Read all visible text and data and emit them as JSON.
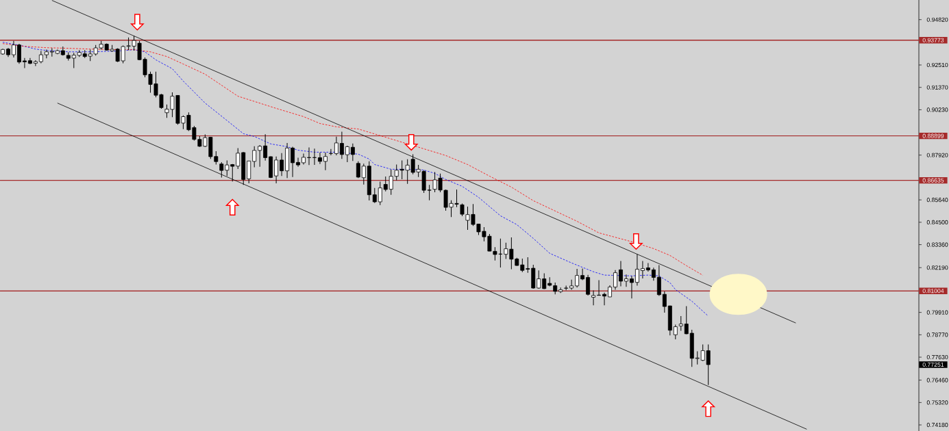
{
  "chart_data": {
    "type": "candlestick",
    "categories": [
      null,
      null,
      null,
      null,
      null,
      null,
      null,
      null,
      null,
      null,
      null,
      null,
      null,
      null,
      null,
      null,
      null,
      null,
      null,
      null,
      null,
      null,
      null,
      null,
      null,
      null,
      null,
      null,
      null,
      null,
      null,
      null,
      null,
      null,
      null,
      null,
      null,
      null,
      null,
      null,
      null,
      null,
      null,
      null,
      null,
      null,
      null,
      null,
      null,
      null,
      null,
      null,
      null,
      null,
      null,
      null,
      null,
      null,
      null,
      null,
      null,
      null,
      null,
      null,
      null,
      null,
      null,
      null,
      null,
      null,
      null,
      null,
      null,
      null,
      null,
      null,
      null,
      null,
      null,
      null,
      null,
      null,
      null,
      null,
      null,
      null,
      null,
      null,
      null,
      null,
      null,
      null,
      null,
      null,
      null,
      null,
      null,
      null,
      null,
      null,
      null,
      null,
      null,
      null,
      null,
      null,
      null,
      null,
      null,
      null,
      null,
      null,
      null,
      null,
      null,
      null,
      null,
      null,
      null,
      null,
      null,
      null,
      null,
      null,
      null,
      null,
      null,
      null,
      null,
      null,
      null,
      null,
      null,
      null,
      null,
      null,
      null,
      null,
      null,
      null,
      null,
      null,
      null,
      null,
      null,
      null,
      null,
      null,
      null,
      null,
      null,
      null,
      null,
      null,
      null,
      null,
      null,
      null,
      null,
      null,
      null,
      null,
      null,
      null,
      null,
      null,
      null,
      null
    ],
    "ohlc": [
      [
        0.9307,
        0.9334,
        0.9303,
        0.933
      ],
      [
        0.9332,
        0.9338,
        0.9292,
        0.9303
      ],
      [
        0.9303,
        0.9374,
        0.9289,
        0.9353
      ],
      [
        0.9353,
        0.9359,
        0.9257,
        0.9266
      ],
      [
        0.9272,
        0.9287,
        0.9235,
        0.9267
      ],
      [
        0.9273,
        0.9287,
        0.9255,
        0.9259
      ],
      [
        0.926,
        0.9275,
        0.9246,
        0.9268
      ],
      [
        0.9268,
        0.9322,
        0.926,
        0.9303
      ],
      [
        0.9303,
        0.9329,
        0.9285,
        0.9318
      ],
      [
        0.9317,
        0.9336,
        0.9294,
        0.932
      ],
      [
        0.931,
        0.9329,
        0.9306,
        0.9324
      ],
      [
        0.9324,
        0.9345,
        0.9299,
        0.9303
      ],
      [
        0.93,
        0.9315,
        0.9274,
        0.9285
      ],
      [
        0.9286,
        0.9313,
        0.9235,
        0.9301
      ],
      [
        0.93,
        0.9327,
        0.9292,
        0.9315
      ],
      [
        0.9308,
        0.9327,
        0.9287,
        0.9294
      ],
      [
        0.9296,
        0.9329,
        0.9271,
        0.9307
      ],
      [
        0.9307,
        0.9353,
        0.9299,
        0.9338
      ],
      [
        0.9338,
        0.9374,
        0.9329,
        0.9357
      ],
      [
        0.9357,
        0.9361,
        0.9324,
        0.9327
      ],
      [
        0.9323,
        0.9353,
        0.9318,
        0.9331
      ],
      [
        0.9332,
        0.9336,
        0.9266,
        0.927
      ],
      [
        0.9272,
        0.935,
        0.926,
        0.9345
      ],
      [
        0.9346,
        0.9391,
        0.9327,
        0.9349
      ],
      [
        0.9347,
        0.94,
        0.9324,
        0.9376
      ],
      [
        0.9362,
        0.9374,
        0.9275,
        0.9278
      ],
      [
        0.928,
        0.9289,
        0.9188,
        0.9201
      ],
      [
        0.9204,
        0.9217,
        0.911,
        0.9152
      ],
      [
        0.9155,
        0.9217,
        0.9086,
        0.9097
      ],
      [
        0.91,
        0.9104,
        0.9028,
        0.9034
      ],
      [
        0.9008,
        0.905,
        0.8982,
        0.9026
      ],
      [
        0.9025,
        0.9112,
        0.8985,
        0.9092
      ],
      [
        0.9096,
        0.9097,
        0.8947,
        0.8954
      ],
      [
        0.8955,
        0.8994,
        0.8924,
        0.8988
      ],
      [
        0.8995,
        0.901,
        0.8915,
        0.8921
      ],
      [
        0.8932,
        0.8941,
        0.8866,
        0.8872
      ],
      [
        0.8872,
        0.8889,
        0.8834,
        0.8837
      ],
      [
        0.8837,
        0.8897,
        0.8834,
        0.8881
      ],
      [
        0.8883,
        0.8885,
        0.8773,
        0.8784
      ],
      [
        0.8785,
        0.8812,
        0.8744,
        0.8759
      ],
      [
        0.8747,
        0.8756,
        0.8678,
        0.8714
      ],
      [
        0.8715,
        0.8765,
        0.8686,
        0.8742
      ],
      [
        0.8744,
        0.8747,
        0.8658,
        0.8735
      ],
      [
        0.8736,
        0.8828,
        0.8721,
        0.8802
      ],
      [
        0.8805,
        0.8808,
        0.864,
        0.8668
      ],
      [
        0.8671,
        0.8763,
        0.8648,
        0.8762
      ],
      [
        0.876,
        0.8837,
        0.873,
        0.8816
      ],
      [
        0.8816,
        0.8843,
        0.8733,
        0.8837
      ],
      [
        0.8839,
        0.8898,
        0.8764,
        0.8779
      ],
      [
        0.8784,
        0.8786,
        0.8675,
        0.8678
      ],
      [
        0.8686,
        0.8785,
        0.8648,
        0.8767
      ],
      [
        0.8767,
        0.8802,
        0.8686,
        0.8712
      ],
      [
        0.8712,
        0.8854,
        0.8675,
        0.8828
      ],
      [
        0.8828,
        0.8835,
        0.868,
        0.8753
      ],
      [
        0.8755,
        0.8779,
        0.8733,
        0.8742
      ],
      [
        0.8753,
        0.88,
        0.8744,
        0.8781
      ],
      [
        0.8779,
        0.8831,
        0.8741,
        0.878
      ],
      [
        0.8779,
        0.8825,
        0.8742,
        0.878
      ],
      [
        0.8779,
        0.8805,
        0.8747,
        0.876
      ],
      [
        0.876,
        0.8805,
        0.8715,
        0.8785
      ],
      [
        0.88,
        0.8823,
        0.8791,
        0.88
      ],
      [
        0.88,
        0.8886,
        0.8791,
        0.8854
      ],
      [
        0.8852,
        0.8911,
        0.8773,
        0.8795
      ],
      [
        0.8794,
        0.884,
        0.8756,
        0.8835
      ],
      [
        0.8832,
        0.8851,
        0.8762,
        0.8795
      ],
      [
        0.875,
        0.8761,
        0.8675,
        0.868
      ],
      [
        0.8677,
        0.8748,
        0.8642,
        0.8736
      ],
      [
        0.8736,
        0.8761,
        0.8561,
        0.859
      ],
      [
        0.859,
        0.8625,
        0.8548,
        0.8554
      ],
      [
        0.8554,
        0.8657,
        0.8538,
        0.8625
      ],
      [
        0.8643,
        0.8683,
        0.8607,
        0.8617
      ],
      [
        0.8618,
        0.8719,
        0.859,
        0.8684
      ],
      [
        0.8684,
        0.8744,
        0.8663,
        0.8715
      ],
      [
        0.872,
        0.8765,
        0.8669,
        0.8715
      ],
      [
        0.8715,
        0.8771,
        0.8646,
        0.8741
      ],
      [
        0.8771,
        0.8796,
        0.8694,
        0.8704
      ],
      [
        0.8706,
        0.8742,
        0.868,
        0.872
      ],
      [
        0.8709,
        0.8715,
        0.8599,
        0.8613
      ],
      [
        0.8614,
        0.864,
        0.8562,
        0.8613
      ],
      [
        0.8618,
        0.8706,
        0.8603,
        0.8666
      ],
      [
        0.8675,
        0.8698,
        0.8603,
        0.8614
      ],
      [
        0.8613,
        0.8617,
        0.8509,
        0.8526
      ],
      [
        0.8527,
        0.8562,
        0.8477,
        0.8546
      ],
      [
        0.8546,
        0.8617,
        0.8527,
        0.8542
      ],
      [
        0.8539,
        0.8545,
        0.8481,
        0.8491
      ],
      [
        0.846,
        0.853,
        0.8411,
        0.8489
      ],
      [
        0.849,
        0.8543,
        0.8431,
        0.8439
      ],
      [
        0.8441,
        0.8443,
        0.8385,
        0.8401
      ],
      [
        0.8404,
        0.8425,
        0.8353,
        0.8376
      ],
      [
        0.8379,
        0.839,
        0.8302,
        0.8303
      ],
      [
        0.8302,
        0.8323,
        0.8255,
        0.8286
      ],
      [
        0.8288,
        0.8367,
        0.822,
        0.8288
      ],
      [
        0.8287,
        0.8346,
        0.8263,
        0.8315
      ],
      [
        0.8313,
        0.8373,
        0.8211,
        0.8262
      ],
      [
        0.8263,
        0.8269,
        0.8228,
        0.823
      ],
      [
        0.8233,
        0.8265,
        0.8196,
        0.8205
      ],
      [
        0.8214,
        0.8272,
        0.8193,
        0.8211
      ],
      [
        0.8216,
        0.8234,
        0.8112,
        0.8115
      ],
      [
        0.8115,
        0.8205,
        0.8112,
        0.8162
      ],
      [
        0.8162,
        0.819,
        0.811,
        0.8112
      ],
      [
        0.8139,
        0.817,
        0.8124,
        0.8129
      ],
      [
        0.8127,
        0.8143,
        0.8083,
        0.8098
      ],
      [
        0.8097,
        0.8118,
        0.809,
        0.8106
      ],
      [
        0.8114,
        0.8127,
        0.8104,
        0.8115
      ],
      [
        0.8115,
        0.8158,
        0.8106,
        0.8126
      ],
      [
        0.8126,
        0.8213,
        0.8118,
        0.8179
      ],
      [
        0.8179,
        0.8214,
        0.8155,
        0.8161
      ],
      [
        0.8169,
        0.8182,
        0.8077,
        0.8083
      ],
      [
        0.8068,
        0.8103,
        0.8027,
        0.8077
      ],
      [
        0.8079,
        0.8155,
        0.8077,
        0.8078
      ],
      [
        0.8083,
        0.8092,
        0.8027,
        0.8074
      ],
      [
        0.807,
        0.8129,
        0.8069,
        0.812
      ],
      [
        0.812,
        0.8207,
        0.8106,
        0.8193
      ],
      [
        0.8208,
        0.8253,
        0.8124,
        0.815
      ],
      [
        0.815,
        0.8184,
        0.8121,
        0.8162
      ],
      [
        0.8162,
        0.8176,
        0.8062,
        0.8143
      ],
      [
        0.8144,
        0.8288,
        0.8127,
        0.8211
      ],
      [
        0.8204,
        0.8253,
        0.8164,
        0.8214
      ],
      [
        0.8218,
        0.8242,
        0.8199,
        0.8207
      ],
      [
        0.8208,
        0.8219,
        0.8153,
        0.8169
      ],
      [
        0.817,
        0.8232,
        0.8075,
        0.8081
      ],
      [
        0.8083,
        0.8098,
        0.799,
        0.8021
      ],
      [
        0.8024,
        0.8025,
        0.7874,
        0.79
      ],
      [
        0.7877,
        0.7929,
        0.7854,
        0.7918
      ],
      [
        0.7922,
        0.7972,
        0.7897,
        0.7932
      ],
      [
        0.7932,
        0.8023,
        0.788,
        0.7882
      ],
      [
        0.7885,
        0.7903,
        0.7714,
        0.7757
      ],
      [
        0.7756,
        0.7793,
        0.7726,
        0.7759
      ],
      [
        0.7747,
        0.7828,
        0.7743,
        0.7796
      ],
      [
        0.7796,
        0.7828,
        0.7621,
        0.7725
      ],
      null,
      null,
      null,
      null,
      null,
      null,
      null,
      null,
      null,
      null,
      null,
      null,
      null,
      null,
      null,
      null,
      null,
      null,
      null,
      null,
      null,
      null,
      null,
      null,
      null,
      null,
      null,
      null,
      null,
      null,
      null,
      null,
      null,
      null,
      null,
      null,
      null,
      null
    ],
    "series": [
      {
        "type": "line",
        "color": "#0000ff",
        "line_style": "dashed",
        "values": [
          0.9367,
          null,
          0.9357,
          null,
          0.9346,
          null,
          0.9332,
          null,
          0.9325,
          null,
          null,
          null,
          0.9318,
          null,
          null,
          null,
          0.9318,
          null,
          null,
          null,
          null,
          0.9322,
          null,
          null,
          0.9329,
          null,
          0.9318,
          null,
          0.9277,
          null,
          null,
          0.9232,
          null,
          0.9169,
          null,
          null,
          null,
          0.9057,
          null,
          null,
          null,
          null,
          0.8946,
          null,
          0.8901,
          null,
          0.8887,
          null,
          null,
          0.8849,
          null,
          null,
          0.8835,
          null,
          0.8817,
          null,
          null,
          0.8807,
          null,
          null,
          null,
          0.8807,
          null,
          null,
          null,
          0.8797,
          null,
          0.8772,
          0.8744,
          null,
          null,
          0.872,
          null,
          null,
          0.872,
          null,
          null,
          0.8716,
          null,
          0.8699,
          null,
          0.8668,
          null,
          null,
          0.8633,
          null,
          null,
          0.8577,
          null,
          null,
          null,
          0.8483,
          null,
          null,
          0.8438,
          null,
          null,
          0.8368,
          null,
          null,
          0.8292,
          null,
          null,
          null,
          0.8243,
          null,
          null,
          null,
          0.8198,
          null,
          0.8181,
          null,
          null,
          null,
          null,
          0.8177,
          null,
          null,
          0.8181,
          null,
          0.8177,
          null,
          0.8142,
          0.8107,
          null,
          null,
          0.8048,
          null,
          null,
          0.7972,
          null,
          null,
          null,
          null,
          null,
          null,
          null,
          null,
          null,
          null,
          null,
          null,
          null,
          null,
          null,
          null,
          null,
          null,
          null,
          null,
          null,
          null,
          null,
          null,
          null,
          null,
          null,
          null,
          null,
          null,
          null,
          null,
          null,
          null,
          null,
          null,
          null,
          null
        ]
      },
      {
        "type": "line",
        "color": "#ff0000",
        "line_style": "dashed",
        "values": [
          0.936,
          null,
          null,
          null,
          0.9346,
          null,
          null,
          null,
          0.9339,
          null,
          null,
          null,
          0.9336,
          null,
          null,
          null,
          0.9332,
          null,
          null,
          null,
          null,
          0.9329,
          null,
          null,
          0.9329,
          null,
          null,
          0.9318,
          null,
          null,
          0.9294,
          null,
          null,
          0.9256,
          null,
          null,
          null,
          0.9204,
          null,
          null,
          null,
          null,
          null,
          0.9092,
          null,
          null,
          null,
          null,
          null,
          null,
          0.903,
          null,
          null,
          null,
          null,
          0.8988,
          null,
          null,
          0.8953,
          null,
          null,
          0.8936,
          null,
          null,
          null,
          0.8925,
          null,
          null,
          null,
          null,
          null,
          null,
          null,
          null,
          null,
          null,
          null,
          0.8824,
          null,
          null,
          null,
          0.879,
          null,
          null,
          null,
          0.8744,
          null,
          null,
          null,
          0.8685,
          null,
          null,
          null,
          0.8629,
          null,
          null,
          null,
          0.856,
          null,
          null,
          null,
          null,
          null,
          null,
          null,
          0.8455,
          null,
          null,
          null,
          0.8396,
          null,
          null,
          null,
          null,
          null,
          0.8351,
          null,
          null,
          null,
          0.8316,
          null,
          null,
          0.8281,
          null,
          null,
          0.8229,
          null,
          null,
          0.818,
          null,
          null,
          null,
          null,
          null,
          null,
          null,
          null,
          null,
          null,
          null,
          null,
          null,
          null,
          null,
          null,
          null,
          null,
          null,
          null,
          null,
          null,
          null,
          null,
          null,
          null,
          null,
          null,
          null,
          null,
          null,
          null,
          null,
          null,
          null,
          null,
          null,
          null,
          null
        ]
      },
      {
        "type": "line",
        "color": "#000000",
        "line_style": "solid",
        "values": [
          null,
          null,
          null,
          null,
          null,
          null,
          null,
          null,
          null,
          0.958,
          null,
          null,
          null,
          null,
          null,
          null,
          null,
          null,
          null,
          null,
          null,
          null,
          null,
          null,
          null,
          null,
          null,
          null,
          null,
          null,
          null,
          null,
          null,
          null,
          null,
          null,
          null,
          null,
          null,
          null,
          null,
          null,
          null,
          null,
          null,
          null,
          null,
          null,
          null,
          null,
          null,
          null,
          null,
          null,
          null,
          null,
          null,
          null,
          null,
          null,
          null,
          null,
          null,
          null,
          null,
          null,
          null,
          null,
          null,
          null,
          null,
          null,
          null,
          null,
          null,
          null,
          null,
          null,
          null,
          null,
          null,
          null,
          null,
          null,
          null,
          null,
          null,
          null,
          null,
          null,
          null,
          null,
          null,
          null,
          null,
          null,
          null,
          null,
          null,
          null,
          null,
          null,
          null,
          null,
          null,
          null,
          null,
          null,
          null,
          null,
          null,
          null,
          null,
          null,
          null,
          null,
          null,
          null,
          null,
          null,
          null,
          null,
          null,
          null,
          null,
          null,
          null,
          null,
          null,
          null,
          null,
          null,
          null,
          null,
          null,
          null,
          null,
          null,
          null,
          null,
          null,
          null,
          null,
          null,
          null,
          0.7937,
          null,
          null,
          null,
          null,
          null,
          null,
          null,
          null,
          null,
          null,
          null,
          null,
          null,
          null,
          null,
          null,
          null,
          null,
          null,
          null,
          null,
          null
        ]
      },
      {
        "type": "line",
        "color": "#000000",
        "line_style": "solid",
        "values": [
          null,
          null,
          null,
          null,
          null,
          null,
          null,
          null,
          null,
          null,
          0.9057,
          null,
          null,
          null,
          null,
          null,
          null,
          null,
          null,
          null,
          null,
          null,
          null,
          null,
          null,
          null,
          null,
          null,
          null,
          null,
          null,
          null,
          null,
          null,
          null,
          null,
          null,
          null,
          null,
          null,
          null,
          null,
          null,
          null,
          null,
          null,
          null,
          null,
          null,
          null,
          null,
          null,
          null,
          null,
          null,
          null,
          null,
          null,
          null,
          null,
          null,
          null,
          null,
          null,
          null,
          null,
          null,
          null,
          null,
          null,
          null,
          null,
          null,
          null,
          null,
          null,
          null,
          null,
          null,
          null,
          null,
          null,
          null,
          null,
          null,
          null,
          null,
          null,
          null,
          null,
          null,
          null,
          null,
          null,
          null,
          null,
          null,
          null,
          null,
          null,
          null,
          null,
          null,
          null,
          null,
          null,
          null,
          null,
          null,
          null,
          null,
          null,
          null,
          null,
          null,
          null,
          null,
          null,
          null,
          null,
          null,
          null,
          null,
          null,
          null,
          null,
          null,
          null,
          null,
          null,
          null,
          null,
          null,
          null,
          null,
          null,
          null,
          null,
          null,
          null,
          null,
          null,
          null,
          null,
          null,
          null,
          null,
          0.7396,
          null,
          null,
          null,
          null,
          null,
          null,
          null,
          null,
          null,
          null,
          null,
          null,
          null,
          null,
          null,
          null,
          null,
          null,
          null,
          null
        ]
      }
    ],
    "ylim": [
      0.7387,
      0.9582
    ],
    "yticks": [
      {
        "value": 0.9482,
        "label": "0.94820"
      },
      {
        "value": 0.9251,
        "label": "0.92510"
      },
      {
        "value": 0.9137,
        "label": "0.91370"
      },
      {
        "value": 0.9023,
        "label": "0.90230"
      },
      {
        "value": 0.8792,
        "label": "0.87920"
      },
      {
        "value": 0.8564,
        "label": "0.85640"
      },
      {
        "value": 0.845,
        "label": "0.84500"
      },
      {
        "value": 0.8336,
        "label": "0.83360"
      },
      {
        "value": 0.8219,
        "label": "0.82190"
      },
      {
        "value": 0.7991,
        "label": "0.79910"
      },
      {
        "value": 0.7877,
        "label": "0.78770"
      },
      {
        "value": 0.7763,
        "label": "0.77630"
      },
      {
        "value": 0.7646,
        "label": "0.76460"
      },
      {
        "value": 0.7532,
        "label": "0.75320"
      },
      {
        "value": 0.7418,
        "label": "0.74180"
      }
    ],
    "ref_lines": [
      {
        "axis": "y",
        "value": 0.93773,
        "label": "0.93773",
        "color": "#a52a2a"
      },
      {
        "axis": "y",
        "value": 0.88899,
        "label": "0.88899",
        "color": "#a52a2a"
      },
      {
        "axis": "y",
        "value": 0.86635,
        "label": "0.86635",
        "color": "#a52a2a"
      },
      {
        "axis": "y",
        "value": 0.81004,
        "label": "0.81004",
        "color": "#a52a2a"
      }
    ],
    "annotations": [
      "0.77251"
    ],
    "tick_labels": "y"
  }
}
